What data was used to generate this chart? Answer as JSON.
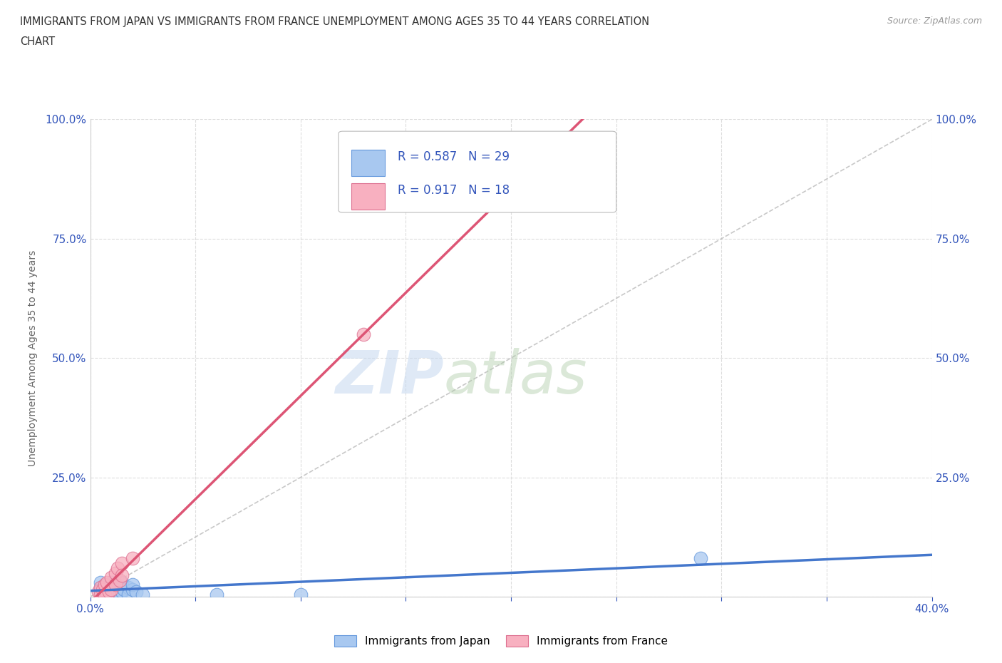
{
  "title_line1": "IMMIGRANTS FROM JAPAN VS IMMIGRANTS FROM FRANCE UNEMPLOYMENT AMONG AGES 35 TO 44 YEARS CORRELATION",
  "title_line2": "CHART",
  "source": "Source: ZipAtlas.com",
  "ylabel": "Unemployment Among Ages 35 to 44 years",
  "xlim": [
    0.0,
    0.4
  ],
  "ylim": [
    0.0,
    1.0
  ],
  "xticks": [
    0.0,
    0.05,
    0.1,
    0.15,
    0.2,
    0.25,
    0.3,
    0.35,
    0.4
  ],
  "yticks": [
    0.0,
    0.25,
    0.5,
    0.75,
    1.0
  ],
  "japan_color": "#a8c8f0",
  "france_color": "#f8b0c0",
  "japan_edge_color": "#6699dd",
  "france_edge_color": "#dd7090",
  "japan_line_color": "#4477cc",
  "france_line_color": "#dd5575",
  "ref_line_color": "#bbbbbb",
  "japan_R": 0.587,
  "japan_N": 29,
  "france_R": 0.917,
  "france_N": 18,
  "legend_japan": "Immigrants from Japan",
  "legend_france": "Immigrants from France",
  "watermark_zip": "ZIP",
  "watermark_atlas": "atlas",
  "japan_points": [
    [
      0.005,
      0.02
    ],
    [
      0.005,
      0.01
    ],
    [
      0.005,
      0.03
    ],
    [
      0.005,
      0.015
    ],
    [
      0.007,
      0.02
    ],
    [
      0.007,
      0.01
    ],
    [
      0.008,
      0.015
    ],
    [
      0.008,
      0.025
    ],
    [
      0.01,
      0.02
    ],
    [
      0.01,
      0.01
    ],
    [
      0.01,
      0.03
    ],
    [
      0.01,
      0.005
    ],
    [
      0.012,
      0.02
    ],
    [
      0.012,
      0.015
    ],
    [
      0.013,
      0.01
    ],
    [
      0.014,
      0.005
    ],
    [
      0.015,
      0.02
    ],
    [
      0.015,
      0.01
    ],
    [
      0.015,
      0.03
    ],
    [
      0.016,
      0.015
    ],
    [
      0.018,
      0.02
    ],
    [
      0.018,
      0.005
    ],
    [
      0.02,
      0.015
    ],
    [
      0.02,
      0.025
    ],
    [
      0.022,
      0.01
    ],
    [
      0.025,
      0.005
    ],
    [
      0.06,
      0.005
    ],
    [
      0.1,
      0.005
    ],
    [
      0.29,
      0.08
    ]
  ],
  "france_points": [
    [
      0.004,
      0.01
    ],
    [
      0.005,
      0.02
    ],
    [
      0.005,
      0.005
    ],
    [
      0.006,
      0.015
    ],
    [
      0.007,
      0.025
    ],
    [
      0.007,
      0.005
    ],
    [
      0.008,
      0.03
    ],
    [
      0.009,
      0.01
    ],
    [
      0.01,
      0.04
    ],
    [
      0.01,
      0.015
    ],
    [
      0.012,
      0.05
    ],
    [
      0.012,
      0.025
    ],
    [
      0.013,
      0.06
    ],
    [
      0.014,
      0.035
    ],
    [
      0.015,
      0.07
    ],
    [
      0.015,
      0.045
    ],
    [
      0.02,
      0.08
    ],
    [
      0.13,
      0.55
    ]
  ],
  "background_color": "#ffffff",
  "grid_color": "#dddddd",
  "title_color": "#333333",
  "axis_label_color": "#666666",
  "tick_color": "#3355bb",
  "legend_text_color": "#3355bb",
  "source_color": "#999999"
}
